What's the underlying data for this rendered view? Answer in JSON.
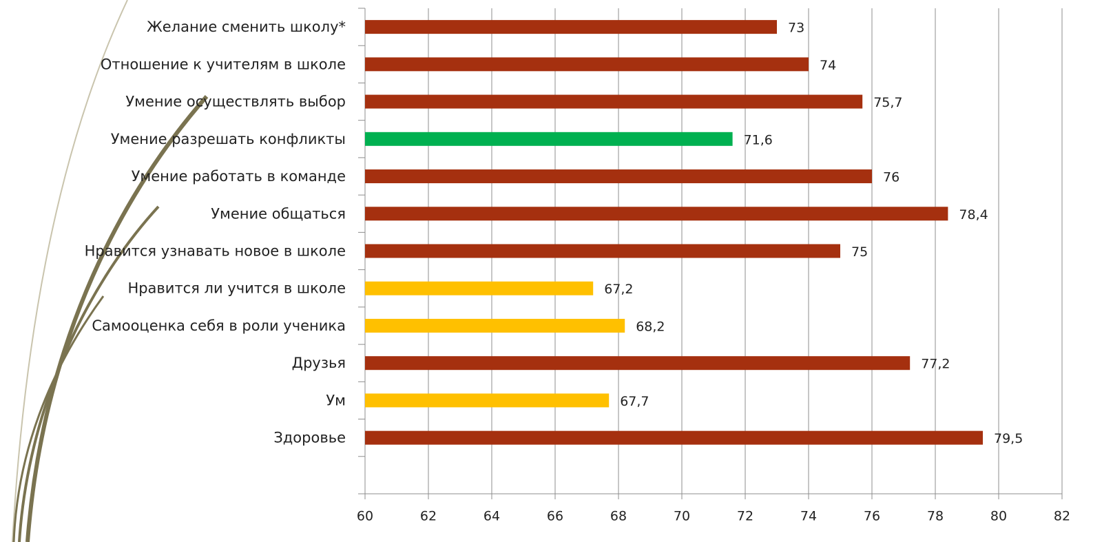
{
  "chart_data": {
    "type": "barh",
    "categories": [
      "Желание сменить школу*",
      "Отношение к учителям в школе",
      "Умение осуществлять выбор",
      "Умение разрешать конфликты",
      "Умение работать в команде",
      "Умение общаться",
      "Нравится узнавать новое в школе",
      "Нравится ли учится в школе",
      "Самооценка себя в роли ученика",
      "Друзья",
      "Ум",
      "Здоровье",
      null
    ],
    "values": [
      73,
      74,
      75.7,
      71.6,
      76,
      78.4,
      75,
      67.2,
      68.2,
      77.2,
      67.7,
      79.5,
      null
    ],
    "value_labels": [
      "73",
      "74",
      "75,7",
      "71,6",
      "76",
      "78,4",
      "75",
      "67,2",
      "68,2",
      "77,2",
      "67,7",
      "79,5",
      null
    ],
    "colors": [
      "#a5300f",
      "#a5300f",
      "#a5300f",
      "#00b050",
      "#a5300f",
      "#a5300f",
      "#a5300f",
      "#ffc000",
      "#ffc000",
      "#a5300f",
      "#ffc000",
      "#a5300f",
      null
    ],
    "xlim": [
      60,
      82
    ],
    "xticks": [
      60,
      62,
      64,
      66,
      68,
      70,
      72,
      74,
      76,
      78,
      80,
      82
    ],
    "grid": true
  }
}
